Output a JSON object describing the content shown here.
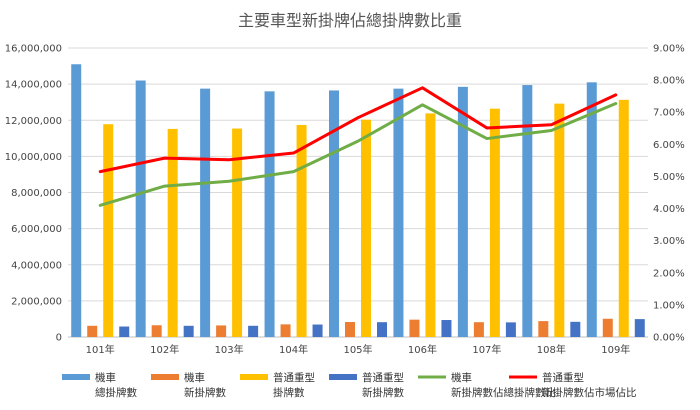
{
  "chart_data": {
    "type": "bar",
    "title": "主要車型新掛牌佔總掛牌數比重",
    "categories": [
      "101年",
      "102年",
      "103年",
      "104年",
      "105年",
      "106年",
      "107年",
      "108年",
      "109年"
    ],
    "y_left": {
      "ylim": [
        0,
        16000000
      ],
      "ticks": [
        0,
        2000000,
        4000000,
        6000000,
        8000000,
        10000000,
        12000000,
        14000000,
        16000000
      ],
      "tick_labels": [
        "0",
        "2,000,000",
        "4,000,000",
        "6,000,000",
        "8,000,000",
        "10,000,000",
        "12,000,000",
        "14,000,000",
        "16,000,000"
      ]
    },
    "y_right": {
      "ylim": [
        0,
        0.09
      ],
      "ticks": [
        0,
        0.01,
        0.02,
        0.03,
        0.04,
        0.05,
        0.06,
        0.07,
        0.08,
        0.09
      ],
      "tick_labels": [
        "0.00%",
        "1.00%",
        "2.00%",
        "3.00%",
        "4.00%",
        "5.00%",
        "6.00%",
        "7.00%",
        "8.00%",
        "9.00%"
      ]
    },
    "bar_series": [
      {
        "name": "機車總掛牌數",
        "legend_lines": [
          "機車",
          "總掛牌數"
        ],
        "color": "#5b9bd5",
        "values": [
          15100000,
          14200000,
          13750000,
          13600000,
          13650000,
          13750000,
          13850000,
          13950000,
          14100000
        ]
      },
      {
        "name": "機車新掛牌數",
        "legend_lines": [
          "機車",
          "新掛牌數"
        ],
        "color": "#ed7d31",
        "values": [
          620000,
          650000,
          640000,
          700000,
          830000,
          960000,
          820000,
          880000,
          1010000
        ]
      },
      {
        "name": "普通重型掛牌數",
        "legend_lines": [
          "普通重型",
          "掛牌數"
        ],
        "color": "#ffc000",
        "values": [
          11780000,
          11520000,
          11540000,
          11740000,
          12030000,
          12380000,
          12640000,
          12920000,
          13130000
        ]
      },
      {
        "name": "普通重型新掛牌數",
        "legend_lines": [
          "普通重型",
          "新掛牌數"
        ],
        "color": "#4472c4",
        "values": [
          580000,
          620000,
          620000,
          690000,
          820000,
          940000,
          810000,
          840000,
          990000
        ]
      }
    ],
    "line_series": [
      {
        "name": "機車新掛牌數佔總掛牌數比",
        "legend_lines": [
          "機車",
          "新掛牌數佔總掛牌數比"
        ],
        "color": "#70ad47",
        "values": [
          0.041,
          0.047,
          0.0485,
          0.0515,
          0.061,
          0.0723,
          0.0618,
          0.0643,
          0.0727
        ]
      },
      {
        "name": "普通重型新掛牌數佔市場佔比",
        "legend_lines": [
          "普通重型",
          "新掛牌數佔市場佔比"
        ],
        "color": "#ff0000",
        "values": [
          0.0515,
          0.0557,
          0.0552,
          0.0573,
          0.0683,
          0.0776,
          0.0651,
          0.0661,
          0.0754
        ]
      }
    ],
    "grid": true,
    "legend_position": "bottom"
  }
}
